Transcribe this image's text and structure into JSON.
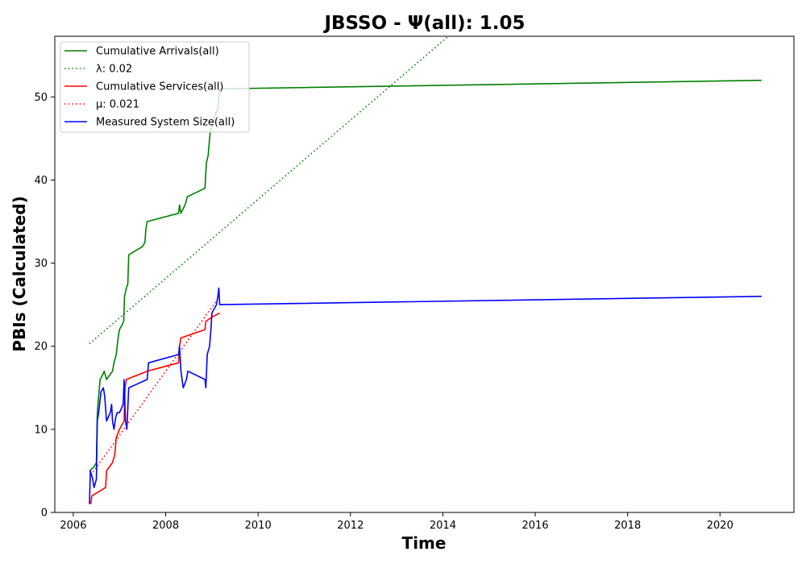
{
  "chart_data": {
    "type": "line",
    "title": "JBSSO -  Ψ(all): 1.05",
    "xlabel": "Time",
    "ylabel": "PBIs (Calculated)",
    "xlim": [
      2005.6,
      2021.6
    ],
    "ylim": [
      0,
      57.3
    ],
    "xticks": [
      2006,
      2008,
      2010,
      2012,
      2014,
      2016,
      2018,
      2020
    ],
    "yticks": [
      0,
      10,
      20,
      30,
      40,
      50
    ],
    "grid": false,
    "legend_position": "top-left",
    "series": [
      {
        "name": "Cumulative Arrivals(all)",
        "color": "#008000",
        "style": "solid",
        "points": [
          [
            2006.35,
            5
          ],
          [
            2006.45,
            5.5
          ],
          [
            2006.5,
            6
          ],
          [
            2006.52,
            12
          ],
          [
            2006.55,
            14
          ],
          [
            2006.58,
            16
          ],
          [
            2006.63,
            16.5
          ],
          [
            2006.67,
            17
          ],
          [
            2006.72,
            16
          ],
          [
            2006.85,
            17
          ],
          [
            2006.88,
            18
          ],
          [
            2006.93,
            19
          ],
          [
            2006.97,
            21
          ],
          [
            2007.0,
            22
          ],
          [
            2007.05,
            22.5
          ],
          [
            2007.09,
            23
          ],
          [
            2007.11,
            26
          ],
          [
            2007.15,
            27
          ],
          [
            2007.18,
            27.5
          ],
          [
            2007.2,
            31
          ],
          [
            2007.5,
            32
          ],
          [
            2007.55,
            32.5
          ],
          [
            2007.57,
            34
          ],
          [
            2007.6,
            35
          ],
          [
            2008.28,
            36
          ],
          [
            2008.3,
            37
          ],
          [
            2008.33,
            36
          ],
          [
            2008.42,
            37
          ],
          [
            2008.47,
            38
          ],
          [
            2008.85,
            39
          ],
          [
            2008.88,
            42
          ],
          [
            2008.92,
            43
          ],
          [
            2008.95,
            45
          ],
          [
            2008.97,
            46
          ],
          [
            2009.03,
            47
          ],
          [
            2009.08,
            48
          ],
          [
            2009.13,
            48.5
          ],
          [
            2009.15,
            50
          ],
          [
            2009.17,
            51
          ],
          [
            2009.5,
            51
          ],
          [
            2020.9,
            52
          ]
        ]
      },
      {
        "name": "λ: 0.02",
        "color": "#008000",
        "style": "dotted",
        "points": [
          [
            2006.35,
            20.3
          ],
          [
            2014.12,
            57.3
          ]
        ]
      },
      {
        "name": "Cumulative Services(all)",
        "color": "#ff0000",
        "style": "solid",
        "points": [
          [
            2006.38,
            1
          ],
          [
            2006.4,
            2
          ],
          [
            2006.7,
            3
          ],
          [
            2006.72,
            5
          ],
          [
            2006.85,
            6
          ],
          [
            2006.9,
            7
          ],
          [
            2006.93,
            9
          ],
          [
            2007.0,
            10
          ],
          [
            2007.1,
            11
          ],
          [
            2007.12,
            15
          ],
          [
            2007.15,
            16
          ],
          [
            2007.6,
            17
          ],
          [
            2008.28,
            18
          ],
          [
            2008.3,
            20
          ],
          [
            2008.33,
            21
          ],
          [
            2008.85,
            22
          ],
          [
            2008.87,
            23
          ],
          [
            2009.0,
            23.5
          ],
          [
            2009.17,
            24
          ]
        ]
      },
      {
        "name": "μ: 0.021",
        "color": "#ff0000",
        "style": "dotted",
        "points": [
          [
            2006.38,
            4.5
          ],
          [
            2009.17,
            26
          ]
        ]
      },
      {
        "name": "Measured System Size(all)",
        "color": "#0000ff",
        "style": "solid",
        "points": [
          [
            2006.35,
            1
          ],
          [
            2006.37,
            5
          ],
          [
            2006.42,
            4
          ],
          [
            2006.45,
            3
          ],
          [
            2006.5,
            4
          ],
          [
            2006.52,
            11
          ],
          [
            2006.55,
            12
          ],
          [
            2006.6,
            14.5
          ],
          [
            2006.65,
            15
          ],
          [
            2006.68,
            14
          ],
          [
            2006.72,
            11
          ],
          [
            2006.8,
            12
          ],
          [
            2006.83,
            13
          ],
          [
            2006.85,
            11
          ],
          [
            2006.88,
            10
          ],
          [
            2006.92,
            11.5
          ],
          [
            2006.95,
            12
          ],
          [
            2007.0,
            12
          ],
          [
            2007.08,
            13
          ],
          [
            2007.1,
            16
          ],
          [
            2007.13,
            11
          ],
          [
            2007.16,
            10
          ],
          [
            2007.2,
            15
          ],
          [
            2007.6,
            16
          ],
          [
            2007.63,
            18
          ],
          [
            2008.28,
            19
          ],
          [
            2008.3,
            20
          ],
          [
            2008.33,
            17
          ],
          [
            2008.38,
            15
          ],
          [
            2008.45,
            16
          ],
          [
            2008.48,
            17
          ],
          [
            2008.85,
            16
          ],
          [
            2008.87,
            15
          ],
          [
            2008.9,
            19
          ],
          [
            2008.95,
            20
          ],
          [
            2008.98,
            22
          ],
          [
            2009.0,
            24
          ],
          [
            2009.05,
            24.5
          ],
          [
            2009.1,
            25
          ],
          [
            2009.13,
            26
          ],
          [
            2009.15,
            27
          ],
          [
            2009.17,
            25
          ],
          [
            2020.9,
            26
          ]
        ]
      }
    ]
  }
}
